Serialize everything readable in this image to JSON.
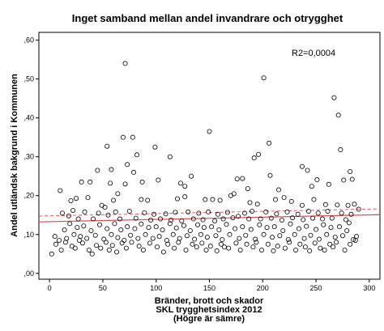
{
  "chart_data": {
    "type": "scatter",
    "title": "Inget samband mellan andel invandrare och otrygghet",
    "xlabel_lines": [
      "Bränder, brott och skador",
      "SKL trygghetsindex 2012",
      "(Högre är sämre)"
    ],
    "ylabel": "Andel utländsk bakgrund i Kommunen",
    "annotation": "R2=0,0004",
    "xlim": [
      -10,
      310
    ],
    "ylim": [
      -0.015,
      0.62
    ],
    "x_ticks": [
      0,
      50,
      100,
      150,
      200,
      250,
      300
    ],
    "x_tick_labels": [
      "0",
      "50",
      "100",
      "150",
      "200",
      "250",
      "300"
    ],
    "y_ticks": [
      0,
      0.1,
      0.2,
      0.3,
      0.4,
      0.5,
      0.6
    ],
    "y_tick_labels": [
      ",00",
      ",10",
      ",20",
      ",30",
      ",40",
      ",50",
      ",60"
    ],
    "fit_line": {
      "intercept": 0.133,
      "slope": 5.8e-05
    },
    "ci_line": {
      "intercept": 0.148,
      "slope": 5.8e-05
    },
    "colors": {
      "fit": "#e8474c",
      "ci": "#e8474c",
      "points": "#000000"
    },
    "points": [
      [
        71,
        0.54
      ],
      [
        201,
        0.503
      ],
      [
        267,
        0.452
      ],
      [
        271,
        0.407
      ],
      [
        150,
        0.365
      ],
      [
        69,
        0.35
      ],
      [
        78,
        0.35
      ],
      [
        273,
        0.318
      ],
      [
        54,
        0.327
      ],
      [
        99,
        0.325
      ],
      [
        206,
        0.335
      ],
      [
        113,
        0.3
      ],
      [
        82,
        0.305
      ],
      [
        196,
        0.306
      ],
      [
        192,
        0.297
      ],
      [
        237,
        0.275
      ],
      [
        73,
        0.28
      ],
      [
        242,
        0.265
      ],
      [
        282,
        0.262
      ],
      [
        45,
        0.265
      ],
      [
        58,
        0.267
      ],
      [
        30,
        0.235
      ],
      [
        10,
        0.213
      ],
      [
        38,
        0.235
      ],
      [
        57,
        0.232
      ],
      [
        64,
        0.205
      ],
      [
        71,
        0.23
      ],
      [
        79,
        0.26
      ],
      [
        87,
        0.235
      ],
      [
        102,
        0.24
      ],
      [
        123,
        0.232
      ],
      [
        127,
        0.224
      ],
      [
        133,
        0.25
      ],
      [
        176,
        0.243
      ],
      [
        181,
        0.244
      ],
      [
        186,
        0.218
      ],
      [
        207,
        0.252
      ],
      [
        246,
        0.224
      ],
      [
        251,
        0.241
      ],
      [
        262,
        0.229
      ],
      [
        276,
        0.24
      ],
      [
        284,
        0.242
      ],
      [
        215,
        0.215
      ],
      [
        20,
        0.187
      ],
      [
        25,
        0.193
      ],
      [
        36,
        0.195
      ],
      [
        49,
        0.175
      ],
      [
        52,
        0.17
      ],
      [
        60,
        0.188
      ],
      [
        86,
        0.19
      ],
      [
        92,
        0.188
      ],
      [
        120,
        0.192
      ],
      [
        127,
        0.197
      ],
      [
        146,
        0.19
      ],
      [
        153,
        0.19
      ],
      [
        160,
        0.188
      ],
      [
        170,
        0.2
      ],
      [
        173,
        0.205
      ],
      [
        188,
        0.182
      ],
      [
        195,
        0.178
      ],
      [
        212,
        0.19
      ],
      [
        220,
        0.195
      ],
      [
        237,
        0.175
      ],
      [
        248,
        0.19
      ],
      [
        259,
        0.177
      ],
      [
        270,
        0.176
      ],
      [
        280,
        0.175
      ],
      [
        286,
        0.178
      ],
      [
        227,
        0.185
      ],
      [
        290,
        0.165
      ],
      [
        12,
        0.155
      ],
      [
        18,
        0.148
      ],
      [
        22,
        0.162
      ],
      [
        27,
        0.14
      ],
      [
        33,
        0.158
      ],
      [
        41,
        0.14
      ],
      [
        46,
        0.155
      ],
      [
        55,
        0.15
      ],
      [
        62,
        0.158
      ],
      [
        66,
        0.14
      ],
      [
        75,
        0.16
      ],
      [
        81,
        0.142
      ],
      [
        89,
        0.156
      ],
      [
        95,
        0.137
      ],
      [
        98,
        0.152
      ],
      [
        104,
        0.14
      ],
      [
        109,
        0.153
      ],
      [
        114,
        0.137
      ],
      [
        118,
        0.157
      ],
      [
        124,
        0.135
      ],
      [
        130,
        0.158
      ],
      [
        135,
        0.14
      ],
      [
        140,
        0.155
      ],
      [
        144,
        0.138
      ],
      [
        149,
        0.158
      ],
      [
        155,
        0.135
      ],
      [
        158,
        0.152
      ],
      [
        163,
        0.14
      ],
      [
        167,
        0.157
      ],
      [
        172,
        0.143
      ],
      [
        177,
        0.147
      ],
      [
        183,
        0.155
      ],
      [
        187,
        0.14
      ],
      [
        190,
        0.16
      ],
      [
        198,
        0.14
      ],
      [
        203,
        0.158
      ],
      [
        208,
        0.142
      ],
      [
        213,
        0.153
      ],
      [
        218,
        0.137
      ],
      [
        223,
        0.158
      ],
      [
        228,
        0.143
      ],
      [
        233,
        0.152
      ],
      [
        238,
        0.138
      ],
      [
        243,
        0.16
      ],
      [
        247,
        0.142
      ],
      [
        252,
        0.155
      ],
      [
        256,
        0.14
      ],
      [
        261,
        0.16
      ],
      [
        265,
        0.142
      ],
      [
        274,
        0.155
      ],
      [
        278,
        0.138
      ],
      [
        283,
        0.152
      ],
      [
        5,
        0.095
      ],
      [
        9,
        0.085
      ],
      [
        14,
        0.112
      ],
      [
        16,
        0.09
      ],
      [
        19,
        0.128
      ],
      [
        23,
        0.1
      ],
      [
        26,
        0.118
      ],
      [
        29,
        0.095
      ],
      [
        32,
        0.122
      ],
      [
        35,
        0.09
      ],
      [
        39,
        0.11
      ],
      [
        43,
        0.098
      ],
      [
        47,
        0.125
      ],
      [
        51,
        0.088
      ],
      [
        54,
        0.115
      ],
      [
        58,
        0.1
      ],
      [
        61,
        0.128
      ],
      [
        64,
        0.092
      ],
      [
        67,
        0.112
      ],
      [
        70,
        0.085
      ],
      [
        73,
        0.12
      ],
      [
        76,
        0.098
      ],
      [
        80,
        0.115
      ],
      [
        83,
        0.09
      ],
      [
        86,
        0.127
      ],
      [
        90,
        0.1
      ],
      [
        93,
        0.118
      ],
      [
        97,
        0.09
      ],
      [
        100,
        0.12
      ],
      [
        103,
        0.095
      ],
      [
        106,
        0.112
      ],
      [
        110,
        0.085
      ],
      [
        113,
        0.128
      ],
      [
        116,
        0.1
      ],
      [
        119,
        0.117
      ],
      [
        122,
        0.09
      ],
      [
        126,
        0.123
      ],
      [
        129,
        0.097
      ],
      [
        132,
        0.11
      ],
      [
        136,
        0.088
      ],
      [
        139,
        0.125
      ],
      [
        142,
        0.1
      ],
      [
        145,
        0.118
      ],
      [
        148,
        0.093
      ],
      [
        152,
        0.12
      ],
      [
        156,
        0.097
      ],
      [
        159,
        0.112
      ],
      [
        162,
        0.087
      ],
      [
        166,
        0.126
      ],
      [
        169,
        0.1
      ],
      [
        174,
        0.115
      ],
      [
        178,
        0.09
      ],
      [
        181,
        0.12
      ],
      [
        184,
        0.098
      ],
      [
        189,
        0.113
      ],
      [
        193,
        0.088
      ],
      [
        197,
        0.125
      ],
      [
        201,
        0.1
      ],
      [
        204,
        0.118
      ],
      [
        209,
        0.093
      ],
      [
        211,
        0.12
      ],
      [
        216,
        0.097
      ],
      [
        219,
        0.11
      ],
      [
        224,
        0.087
      ],
      [
        226,
        0.127
      ],
      [
        230,
        0.1
      ],
      [
        234,
        0.115
      ],
      [
        239,
        0.09
      ],
      [
        241,
        0.121
      ],
      [
        245,
        0.098
      ],
      [
        250,
        0.113
      ],
      [
        253,
        0.088
      ],
      [
        257,
        0.125
      ],
      [
        260,
        0.1
      ],
      [
        264,
        0.118
      ],
      [
        268,
        0.093
      ],
      [
        272,
        0.12
      ],
      [
        275,
        0.097
      ],
      [
        279,
        0.11
      ],
      [
        285,
        0.087
      ],
      [
        288,
        0.095
      ],
      [
        281,
        0.13
      ],
      [
        2,
        0.05
      ],
      [
        6,
        0.075
      ],
      [
        11,
        0.06
      ],
      [
        15,
        0.08
      ],
      [
        21,
        0.07
      ],
      [
        24,
        0.065
      ],
      [
        28,
        0.085
      ],
      [
        31,
        0.078
      ],
      [
        37,
        0.06
      ],
      [
        40,
        0.05
      ],
      [
        44,
        0.072
      ],
      [
        48,
        0.065
      ],
      [
        53,
        0.08
      ],
      [
        56,
        0.06
      ],
      [
        59,
        0.072
      ],
      [
        63,
        0.055
      ],
      [
        68,
        0.078
      ],
      [
        72,
        0.065
      ],
      [
        77,
        0.08
      ],
      [
        84,
        0.07
      ],
      [
        88,
        0.06
      ],
      [
        94,
        0.078
      ],
      [
        101,
        0.068
      ],
      [
        107,
        0.055
      ],
      [
        111,
        0.075
      ],
      [
        117,
        0.065
      ],
      [
        121,
        0.08
      ],
      [
        128,
        0.06
      ],
      [
        134,
        0.075
      ],
      [
        138,
        0.068
      ],
      [
        143,
        0.078
      ],
      [
        147,
        0.06
      ],
      [
        151,
        0.07
      ],
      [
        157,
        0.058
      ],
      [
        161,
        0.075
      ],
      [
        164,
        0.068
      ],
      [
        168,
        0.065
      ],
      [
        175,
        0.078
      ],
      [
        179,
        0.06
      ],
      [
        185,
        0.075
      ],
      [
        191,
        0.068
      ],
      [
        194,
        0.08
      ],
      [
        199,
        0.06
      ],
      [
        205,
        0.075
      ],
      [
        210,
        0.058
      ],
      [
        214,
        0.07
      ],
      [
        221,
        0.065
      ],
      [
        225,
        0.08
      ],
      [
        231,
        0.06
      ],
      [
        235,
        0.075
      ],
      [
        240,
        0.068
      ],
      [
        244,
        0.058
      ],
      [
        249,
        0.078
      ],
      [
        254,
        0.065
      ],
      [
        258,
        0.06
      ],
      [
        263,
        0.075
      ],
      [
        266,
        0.068
      ],
      [
        269,
        0.08
      ],
      [
        277,
        0.06
      ],
      [
        282,
        0.075
      ],
      [
        287,
        0.085
      ]
    ]
  }
}
